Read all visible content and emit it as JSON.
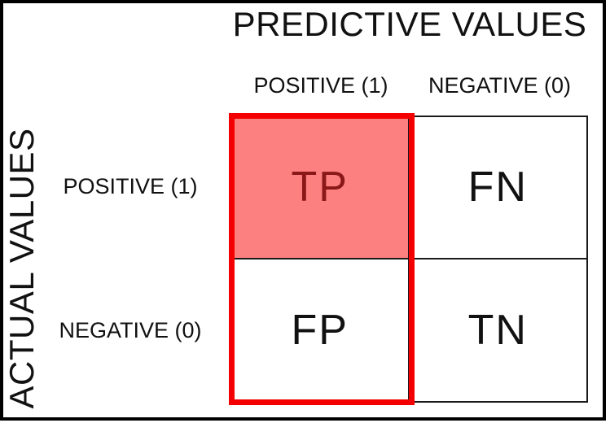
{
  "header": {
    "title": "PREDICTIVE VALUES"
  },
  "side_label": "ACTUAL VALUES",
  "columns": [
    {
      "label": "POSITIVE (1)"
    },
    {
      "label": "NEGATIVE (0)"
    }
  ],
  "rows": [
    {
      "label": "POSITIVE (1)"
    },
    {
      "label": "NEGATIVE (0)"
    }
  ],
  "matrix": {
    "tp": "TP",
    "fn": "FN",
    "fp": "FP",
    "tn": "TN"
  },
  "colors": {
    "highlight_fill": "#FC8080",
    "highlight_border": "#F40000",
    "highlight_text": "#8B1818",
    "grid_line": "#1A1A1A",
    "text": "#111111",
    "frame": "#000000"
  }
}
